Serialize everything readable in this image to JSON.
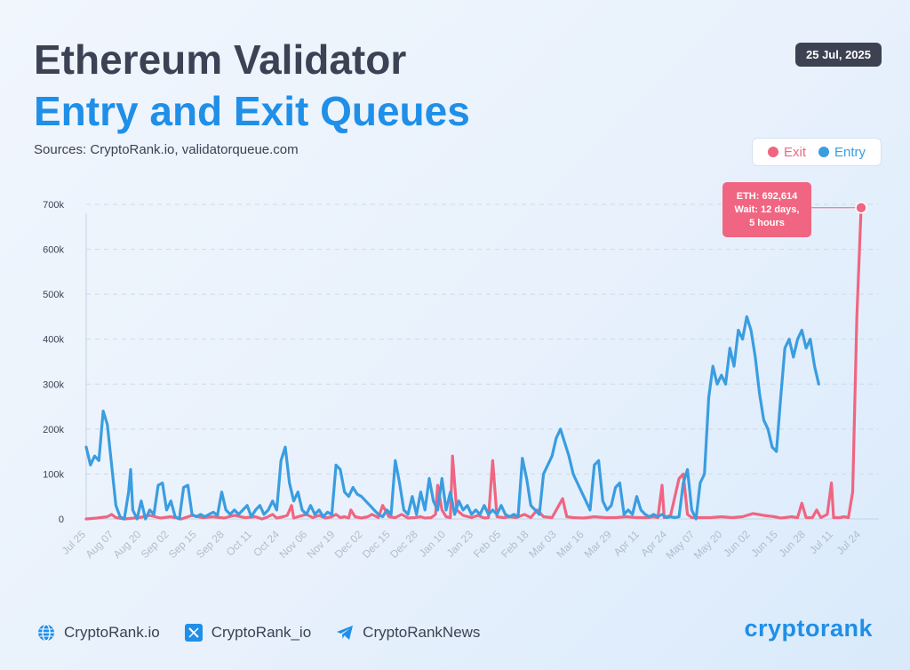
{
  "header": {
    "title_line1": "Ethereum Validator",
    "title_line2": "Entry and Exit Queues",
    "sources": "Sources: CryptoRank.io, validatorqueue.com",
    "date": "25 Jul, 2025"
  },
  "colors": {
    "exit": "#f06581",
    "entry": "#3a9de0",
    "title_dark": "#3b4254",
    "title_blue": "#1f8fe8"
  },
  "footer": {
    "website": "CryptoRank.io",
    "twitter": "CryptoRank_io",
    "telegram": "CryptoRankNews",
    "logo": "cryptorank",
    "icons": [
      "globe-icon",
      "x-logo-icon",
      "telegram-icon"
    ]
  },
  "chart_data": {
    "type": "line",
    "title": "Ethereum Validator Entry and Exit Queues",
    "xlabel": "",
    "ylabel": "",
    "ylim": [
      0,
      700000
    ],
    "yticks": [
      0,
      100000,
      200000,
      300000,
      400000,
      500000,
      600000,
      700000
    ],
    "ytick_labels": [
      "0",
      "100k",
      "200k",
      "300k",
      "400k",
      "500k",
      "600k",
      "700k"
    ],
    "x_labels": [
      "Jul 25",
      "Aug 07",
      "Aug 20",
      "Sep 02",
      "Sep 15",
      "Sep 28",
      "Oct 11",
      "Oct 24",
      "Nov 06",
      "Nov 19",
      "Dec 02",
      "Dec 15",
      "Dec 28",
      "Jan 10",
      "Jan 23",
      "Feb 05",
      "Feb 18",
      "Mar 03",
      "Mar 16",
      "Mar 29",
      "Apr 11",
      "Apr 24",
      "May 07",
      "May 20",
      "Jun 02",
      "Jun 15",
      "Jun 28",
      "Jul 11",
      "Jul 24"
    ],
    "x_range_days": [
      0,
      366
    ],
    "grid": true,
    "legend": {
      "position": "top-right",
      "entries": [
        "Exit",
        "Entry"
      ]
    },
    "annotation": {
      "series": "Exit",
      "day": 366,
      "value": 692614,
      "lines": [
        "ETH: 692,614",
        "Wait: 12 days,",
        "5 hours"
      ]
    },
    "series": [
      {
        "name": "Exit",
        "color": "#f06581",
        "points": [
          [
            0,
            0
          ],
          [
            5,
            2000
          ],
          [
            10,
            5000
          ],
          [
            12,
            10000
          ],
          [
            14,
            3000
          ],
          [
            18,
            0
          ],
          [
            25,
            3000
          ],
          [
            30,
            8000
          ],
          [
            35,
            2000
          ],
          [
            40,
            5000
          ],
          [
            45,
            0
          ],
          [
            50,
            8000
          ],
          [
            55,
            3000
          ],
          [
            60,
            5000
          ],
          [
            65,
            2000
          ],
          [
            70,
            8000
          ],
          [
            75,
            3000
          ],
          [
            80,
            5000
          ],
          [
            83,
            0
          ],
          [
            85,
            3000
          ],
          [
            88,
            10000
          ],
          [
            90,
            2000
          ],
          [
            93,
            5000
          ],
          [
            95,
            8000
          ],
          [
            97,
            30000
          ],
          [
            98,
            2000
          ],
          [
            100,
            5000
          ],
          [
            104,
            10000
          ],
          [
            107,
            3000
          ],
          [
            110,
            8000
          ],
          [
            113,
            2000
          ],
          [
            116,
            5000
          ],
          [
            118,
            10000
          ],
          [
            120,
            3000
          ],
          [
            122,
            5000
          ],
          [
            124,
            2000
          ],
          [
            125,
            20000
          ],
          [
            127,
            5000
          ],
          [
            130,
            2000
          ],
          [
            133,
            5000
          ],
          [
            135,
            10000
          ],
          [
            138,
            3000
          ],
          [
            140,
            30000
          ],
          [
            143,
            5000
          ],
          [
            146,
            3000
          ],
          [
            149,
            10000
          ],
          [
            152,
            2000
          ],
          [
            155,
            3000
          ],
          [
            158,
            5000
          ],
          [
            160,
            2000
          ],
          [
            163,
            3000
          ],
          [
            165,
            10000
          ],
          [
            166,
            75000
          ],
          [
            168,
            20000
          ],
          [
            170,
            5000
          ],
          [
            172,
            3000
          ],
          [
            173,
            140000
          ],
          [
            175,
            20000
          ],
          [
            178,
            8000
          ],
          [
            182,
            3000
          ],
          [
            185,
            8000
          ],
          [
            188,
            2000
          ],
          [
            190,
            3000
          ],
          [
            192,
            130000
          ],
          [
            194,
            5000
          ],
          [
            197,
            3000
          ],
          [
            200,
            5000
          ],
          [
            203,
            3000
          ],
          [
            207,
            10000
          ],
          [
            210,
            3000
          ],
          [
            213,
            20000
          ],
          [
            216,
            5000
          ],
          [
            220,
            3000
          ],
          [
            225,
            45000
          ],
          [
            227,
            5000
          ],
          [
            230,
            3000
          ],
          [
            235,
            2000
          ],
          [
            240,
            5000
          ],
          [
            245,
            3000
          ],
          [
            250,
            3000
          ],
          [
            255,
            5000
          ],
          [
            260,
            3000
          ],
          [
            265,
            3000
          ],
          [
            268,
            5000
          ],
          [
            270,
            3000
          ],
          [
            272,
            75000
          ],
          [
            273,
            3000
          ],
          [
            276,
            8000
          ],
          [
            280,
            90000
          ],
          [
            282,
            100000
          ],
          [
            284,
            10000
          ],
          [
            286,
            3000
          ],
          [
            290,
            3000
          ],
          [
            295,
            3000
          ],
          [
            300,
            5000
          ],
          [
            305,
            3000
          ],
          [
            310,
            5000
          ],
          [
            315,
            12000
          ],
          [
            320,
            8000
          ],
          [
            325,
            5000
          ],
          [
            328,
            2000
          ],
          [
            330,
            3000
          ],
          [
            333,
            5000
          ],
          [
            336,
            3000
          ],
          [
            338,
            35000
          ],
          [
            340,
            3000
          ],
          [
            343,
            3000
          ],
          [
            345,
            20000
          ],
          [
            347,
            3000
          ],
          [
            350,
            10000
          ],
          [
            352,
            80000
          ],
          [
            353,
            3000
          ],
          [
            356,
            3000
          ],
          [
            358,
            5000
          ],
          [
            360,
            3000
          ],
          [
            362,
            60000
          ],
          [
            364,
            450000
          ],
          [
            366,
            692614
          ]
        ]
      },
      {
        "name": "Entry",
        "color": "#3a9de0",
        "points": [
          [
            0,
            160000
          ],
          [
            2,
            120000
          ],
          [
            4,
            140000
          ],
          [
            6,
            130000
          ],
          [
            8,
            240000
          ],
          [
            10,
            210000
          ],
          [
            12,
            120000
          ],
          [
            14,
            30000
          ],
          [
            16,
            5000
          ],
          [
            18,
            0
          ],
          [
            20,
            60000
          ],
          [
            21,
            110000
          ],
          [
            22,
            20000
          ],
          [
            24,
            0
          ],
          [
            26,
            40000
          ],
          [
            28,
            0
          ],
          [
            30,
            20000
          ],
          [
            32,
            10000
          ],
          [
            34,
            75000
          ],
          [
            36,
            80000
          ],
          [
            38,
            20000
          ],
          [
            40,
            40000
          ],
          [
            42,
            5000
          ],
          [
            44,
            0
          ],
          [
            46,
            70000
          ],
          [
            48,
            75000
          ],
          [
            50,
            10000
          ],
          [
            52,
            5000
          ],
          [
            54,
            10000
          ],
          [
            56,
            5000
          ],
          [
            58,
            10000
          ],
          [
            60,
            15000
          ],
          [
            62,
            8000
          ],
          [
            64,
            60000
          ],
          [
            66,
            20000
          ],
          [
            68,
            10000
          ],
          [
            70,
            20000
          ],
          [
            72,
            10000
          ],
          [
            74,
            20000
          ],
          [
            76,
            30000
          ],
          [
            78,
            5000
          ],
          [
            80,
            20000
          ],
          [
            82,
            30000
          ],
          [
            84,
            10000
          ],
          [
            86,
            20000
          ],
          [
            88,
            40000
          ],
          [
            90,
            20000
          ],
          [
            92,
            130000
          ],
          [
            94,
            160000
          ],
          [
            96,
            80000
          ],
          [
            98,
            40000
          ],
          [
            100,
            60000
          ],
          [
            102,
            20000
          ],
          [
            104,
            10000
          ],
          [
            106,
            30000
          ],
          [
            108,
            10000
          ],
          [
            110,
            20000
          ],
          [
            112,
            5000
          ],
          [
            114,
            15000
          ],
          [
            116,
            10000
          ],
          [
            118,
            120000
          ],
          [
            120,
            110000
          ],
          [
            122,
            60000
          ],
          [
            124,
            50000
          ],
          [
            126,
            70000
          ],
          [
            128,
            55000
          ],
          [
            130,
            50000
          ],
          [
            132,
            40000
          ],
          [
            134,
            30000
          ],
          [
            136,
            20000
          ],
          [
            138,
            10000
          ],
          [
            140,
            5000
          ],
          [
            142,
            20000
          ],
          [
            144,
            10000
          ],
          [
            146,
            130000
          ],
          [
            148,
            80000
          ],
          [
            150,
            20000
          ],
          [
            152,
            10000
          ],
          [
            154,
            50000
          ],
          [
            156,
            10000
          ],
          [
            158,
            60000
          ],
          [
            160,
            20000
          ],
          [
            162,
            90000
          ],
          [
            164,
            40000
          ],
          [
            166,
            20000
          ],
          [
            168,
            90000
          ],
          [
            170,
            20000
          ],
          [
            172,
            60000
          ],
          [
            174,
            10000
          ],
          [
            176,
            40000
          ],
          [
            178,
            20000
          ],
          [
            180,
            30000
          ],
          [
            182,
            10000
          ],
          [
            184,
            20000
          ],
          [
            186,
            10000
          ],
          [
            188,
            30000
          ],
          [
            190,
            10000
          ],
          [
            192,
            20000
          ],
          [
            194,
            10000
          ],
          [
            196,
            30000
          ],
          [
            198,
            10000
          ],
          [
            200,
            5000
          ],
          [
            202,
            10000
          ],
          [
            204,
            5000
          ],
          [
            206,
            135000
          ],
          [
            208,
            90000
          ],
          [
            210,
            30000
          ],
          [
            212,
            20000
          ],
          [
            214,
            10000
          ],
          [
            216,
            100000
          ],
          [
            218,
            120000
          ],
          [
            220,
            140000
          ],
          [
            222,
            180000
          ],
          [
            224,
            200000
          ],
          [
            226,
            170000
          ],
          [
            228,
            140000
          ],
          [
            230,
            100000
          ],
          [
            232,
            80000
          ],
          [
            234,
            60000
          ],
          [
            236,
            40000
          ],
          [
            238,
            20000
          ],
          [
            240,
            120000
          ],
          [
            242,
            130000
          ],
          [
            244,
            40000
          ],
          [
            246,
            20000
          ],
          [
            248,
            30000
          ],
          [
            250,
            70000
          ],
          [
            252,
            80000
          ],
          [
            254,
            10000
          ],
          [
            256,
            20000
          ],
          [
            258,
            10000
          ],
          [
            260,
            50000
          ],
          [
            262,
            20000
          ],
          [
            264,
            10000
          ],
          [
            266,
            5000
          ],
          [
            268,
            10000
          ],
          [
            270,
            5000
          ],
          [
            272,
            10000
          ],
          [
            274,
            3000
          ],
          [
            276,
            5000
          ],
          [
            278,
            3000
          ],
          [
            280,
            5000
          ],
          [
            282,
            80000
          ],
          [
            284,
            110000
          ],
          [
            286,
            20000
          ],
          [
            288,
            0
          ],
          [
            290,
            80000
          ],
          [
            292,
            100000
          ],
          [
            294,
            270000
          ],
          [
            296,
            340000
          ],
          [
            298,
            300000
          ],
          [
            300,
            320000
          ],
          [
            302,
            300000
          ],
          [
            304,
            380000
          ],
          [
            306,
            340000
          ],
          [
            308,
            420000
          ],
          [
            310,
            400000
          ],
          [
            312,
            450000
          ],
          [
            314,
            420000
          ],
          [
            316,
            360000
          ],
          [
            318,
            280000
          ],
          [
            320,
            220000
          ],
          [
            322,
            200000
          ],
          [
            324,
            160000
          ],
          [
            326,
            150000
          ],
          [
            328,
            270000
          ],
          [
            330,
            380000
          ],
          [
            332,
            400000
          ],
          [
            334,
            360000
          ],
          [
            336,
            400000
          ],
          [
            338,
            420000
          ],
          [
            340,
            380000
          ],
          [
            342,
            400000
          ],
          [
            344,
            340000
          ],
          [
            346,
            300000
          ]
        ]
      }
    ]
  }
}
